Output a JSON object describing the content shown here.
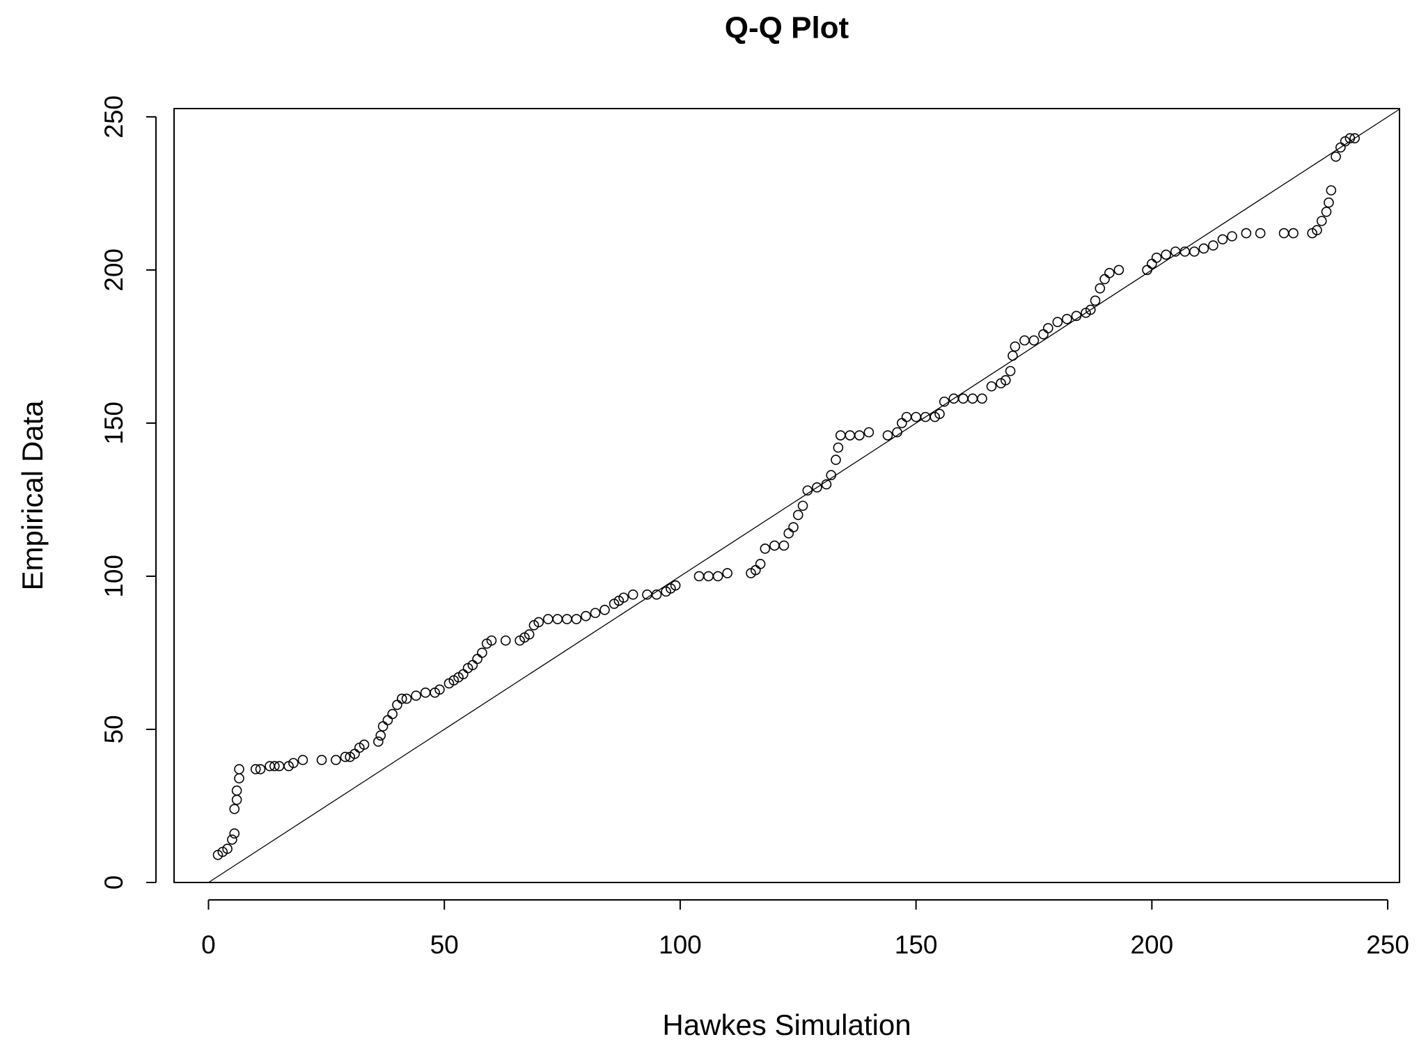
{
  "chart_data": {
    "type": "scatter",
    "title": "Q-Q Plot",
    "x_label": "Hawkes Simulation",
    "y_label": "Empirical Data",
    "xlim": [
      -7.3,
      252.5
    ],
    "ylim": [
      0,
      252.7
    ],
    "xticks": [
      0,
      50,
      100,
      150,
      200,
      250
    ],
    "yticks": [
      0,
      50,
      100,
      150,
      200,
      250
    ],
    "color": "#000000",
    "reference_line": "y=x",
    "x": [
      2,
      3,
      4,
      5,
      5.5,
      5.5,
      6,
      6,
      6.5,
      6.5,
      10,
      11,
      13,
      14,
      15,
      17,
      18,
      20,
      24,
      27,
      29,
      30,
      31,
      32,
      33,
      36,
      36.5,
      37,
      38,
      39,
      40,
      41,
      42,
      44,
      46,
      48,
      49,
      51,
      52,
      53,
      54,
      55,
      56,
      57,
      58,
      59,
      60,
      63,
      66,
      67,
      68,
      69,
      70,
      72,
      74,
      76,
      78,
      80,
      82,
      84,
      86,
      87,
      88,
      90,
      93,
      95,
      97,
      98,
      99,
      104,
      106,
      108,
      110,
      115,
      116,
      117,
      118,
      120,
      122,
      123,
      124,
      125,
      126,
      127,
      129,
      131,
      132,
      133,
      133.5,
      134,
      136,
      138,
      140,
      144,
      146,
      147,
      148,
      150,
      152,
      154,
      155,
      156,
      158,
      160,
      162,
      164,
      166,
      168,
      169,
      170,
      170.5,
      171,
      173,
      175,
      177,
      178,
      180,
      182,
      184,
      186,
      187,
      188,
      189,
      190,
      191,
      193,
      199,
      200,
      201,
      203,
      205,
      207,
      209,
      211,
      213,
      215,
      217,
      220,
      223,
      228,
      230,
      234,
      235,
      236,
      237,
      237.5,
      238,
      239,
      240,
      241,
      242,
      243
    ],
    "y": [
      9,
      10,
      11,
      14,
      16,
      24,
      27,
      30,
      34,
      37,
      37,
      37,
      38,
      38,
      38,
      38,
      39,
      40,
      40,
      40,
      41,
      41,
      42,
      44,
      45,
      46,
      48,
      51,
      53,
      55,
      58,
      60,
      60,
      61,
      62,
      62,
      63,
      65,
      66,
      67,
      68,
      70,
      71,
      73,
      75,
      78,
      79,
      79,
      79,
      80,
      81,
      84,
      85,
      86,
      86,
      86,
      86,
      87,
      88,
      89,
      91,
      92,
      93,
      94,
      94,
      94,
      95,
      96,
      97,
      100,
      100,
      100,
      101,
      101,
      102,
      104,
      109,
      110,
      110,
      114,
      116,
      120,
      123,
      128,
      129,
      130,
      133,
      138,
      142,
      146,
      146,
      146,
      147,
      146,
      147,
      150,
      152,
      152,
      152,
      152,
      153,
      157,
      158,
      158,
      158,
      158,
      162,
      163,
      164,
      167,
      172,
      175,
      177,
      177,
      179,
      181,
      183,
      184,
      185,
      186,
      187,
      190,
      194,
      197,
      199,
      200,
      200,
      202,
      204,
      205,
      206,
      206,
      206,
      207,
      208,
      210,
      211,
      212,
      212,
      212,
      212,
      212,
      213,
      216,
      219,
      222,
      226,
      237,
      240,
      242,
      243,
      243
    ]
  }
}
